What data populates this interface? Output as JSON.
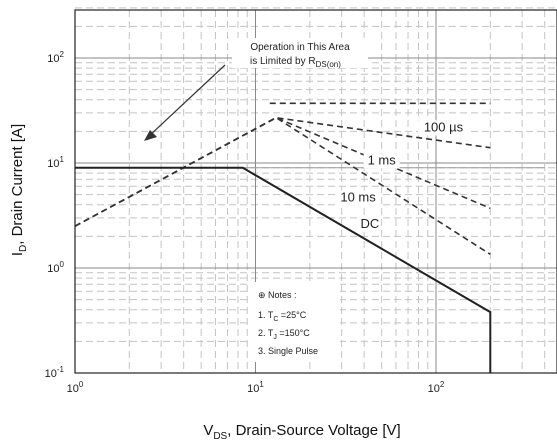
{
  "chart_data": {
    "type": "line",
    "title": "",
    "xlabel": "V_DS, Drain-Source Voltage [V]",
    "xlabel_main": "V",
    "xlabel_sub": "DS",
    "xlabel_rest": ", Drain-Source Voltage [V]",
    "ylabel": "I_D, Drain Current [A]",
    "ylabel_main": "I",
    "ylabel_sub": "D",
    "ylabel_rest": ", Drain Current [A]",
    "x_scale": "log",
    "y_scale": "log",
    "xlim": [
      1,
      400
    ],
    "ylim": [
      0.1,
      300
    ],
    "grid": true,
    "x_ticks": [
      {
        "value": 1,
        "base": "10",
        "exp": "0"
      },
      {
        "value": 10,
        "base": "10",
        "exp": "1"
      },
      {
        "value": 100,
        "base": "10",
        "exp": "2"
      }
    ],
    "y_ticks": [
      {
        "value": 0.1,
        "base": "10",
        "exp": "-1"
      },
      {
        "value": 1,
        "base": "10",
        "exp": "0"
      },
      {
        "value": 10,
        "base": "10",
        "exp": "1"
      },
      {
        "value": 100,
        "base": "10",
        "exp": "2"
      }
    ],
    "series": [
      {
        "name": "100 µs",
        "style": "dashed",
        "x": [
          1,
          13,
          200
        ],
        "y": [
          2.5,
          27,
          14
        ]
      },
      {
        "name": "1 ms",
        "style": "dashed",
        "x": [
          1,
          13,
          200
        ],
        "y": [
          2.5,
          27,
          3.7
        ]
      },
      {
        "name": "10 ms",
        "style": "dashed",
        "x": [
          1,
          13,
          200
        ],
        "y": [
          2.5,
          27,
          1.35
        ]
      },
      {
        "name": "",
        "style": "dashed",
        "x": [
          12,
          200
        ],
        "y": [
          37,
          37
        ]
      },
      {
        "name": "DC",
        "style": "solid",
        "x": [
          1,
          8.5,
          200,
          200
        ],
        "y": [
          9,
          9,
          0.38,
          0.1
        ]
      }
    ],
    "limit_line": {
      "x": [
        1,
        400
      ],
      "y": [
        9,
        9
      ]
    },
    "labels": [
      {
        "text": "100 µs",
        "x": 110,
        "y": 20
      },
      {
        "text": "1 ms",
        "x": 50,
        "y": 9.7
      },
      {
        "text": "10 ms",
        "x": 37,
        "y": 4.3
      },
      {
        "text": "DC",
        "x": 43,
        "y": 2.4
      }
    ],
    "annotation": {
      "line1": "Operation in This Area",
      "line2": "is Limited by R",
      "line2_sub": "DS(on)"
    },
    "notes": {
      "title": "Notes :",
      "items": [
        {
          "prefix": "1. T",
          "sub": "C",
          "suffix": " =25°C"
        },
        {
          "prefix": "2. T",
          "sub": "J",
          "suffix": " =150°C"
        },
        {
          "prefix": "3. Single Pulse",
          "sub": "",
          "suffix": ""
        }
      ]
    }
  }
}
